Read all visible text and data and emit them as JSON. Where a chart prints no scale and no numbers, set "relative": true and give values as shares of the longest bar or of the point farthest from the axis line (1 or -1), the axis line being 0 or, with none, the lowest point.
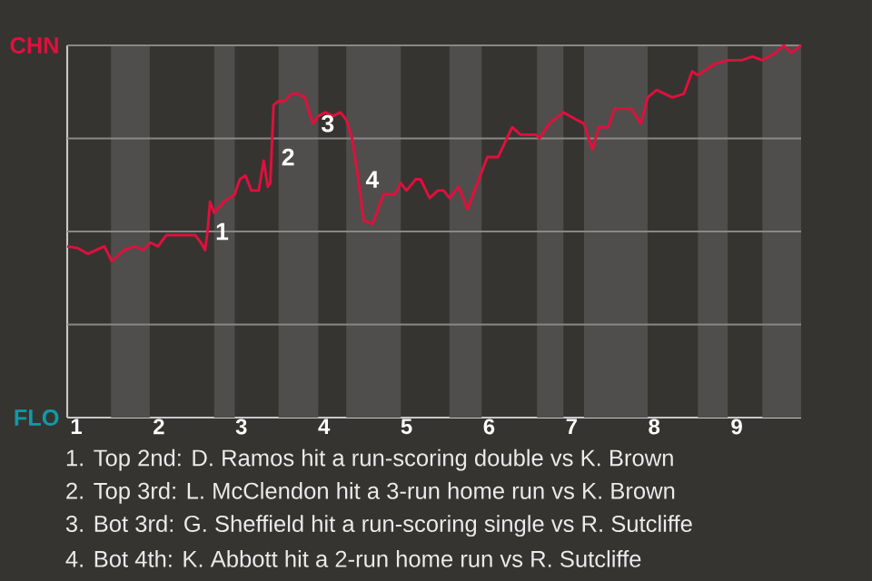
{
  "chart_data": {
    "type": "line",
    "relative": true,
    "x": [
      0.89,
      1.02,
      1.14,
      1.34,
      1.43,
      1.58,
      1.71,
      1.81,
      1.9,
      1.99,
      2.09,
      2.44,
      2.51,
      2.56,
      2.59,
      2.62,
      2.67,
      2.79,
      2.92,
      2.98,
      3.05,
      3.12,
      3.21,
      3.27,
      3.32,
      3.35,
      3.39,
      3.45,
      3.52,
      3.61,
      3.68,
      3.77,
      3.82,
      3.87,
      3.93,
      4.02,
      4.11,
      4.2,
      4.27,
      4.34,
      4.41,
      4.48,
      4.59,
      4.72,
      4.86,
      4.93,
      5.0,
      5.11,
      5.17,
      5.28,
      5.38,
      5.45,
      5.52,
      5.63,
      5.74,
      5.91,
      5.98,
      6.11,
      6.28,
      6.38,
      6.57,
      6.61,
      6.73,
      6.9,
      7.06,
      7.15,
      7.25,
      7.33,
      7.44,
      7.52,
      7.72,
      7.84,
      7.92,
      8.03,
      8.22,
      8.36,
      8.46,
      8.53,
      8.73,
      8.89,
      9.06,
      9.19,
      9.31,
      9.47,
      9.57,
      9.66,
      9.78
    ],
    "series": [
      {
        "color": "#e0103c",
        "values": [
          0.46,
          0.455,
          0.44,
          0.46,
          0.42,
          0.45,
          0.46,
          0.45,
          0.47,
          0.46,
          0.49,
          0.49,
          0.47,
          0.45,
          0.5,
          0.58,
          0.55,
          0.58,
          0.6,
          0.64,
          0.65,
          0.61,
          0.61,
          0.69,
          0.62,
          0.63,
          0.84,
          0.85,
          0.85,
          0.87,
          0.87,
          0.86,
          0.82,
          0.79,
          0.81,
          0.82,
          0.81,
          0.82,
          0.8,
          0.75,
          0.65,
          0.53,
          0.52,
          0.6,
          0.6,
          0.63,
          0.61,
          0.64,
          0.64,
          0.59,
          0.61,
          0.61,
          0.59,
          0.62,
          0.56,
          0.66,
          0.7,
          0.7,
          0.78,
          0.76,
          0.76,
          0.75,
          0.79,
          0.82,
          0.8,
          0.79,
          0.72,
          0.78,
          0.78,
          0.83,
          0.83,
          0.79,
          0.86,
          0.88,
          0.86,
          0.87,
          0.93,
          0.92,
          0.95,
          0.96,
          0.96,
          0.97,
          0.96,
          0.98,
          1.0,
          0.98,
          1.0
        ]
      }
    ],
    "xlim": [
      0.89,
      9.78
    ],
    "xticks": [
      1,
      2,
      3,
      4,
      5,
      6,
      7,
      8,
      9
    ],
    "ref_lines": [
      {
        "axis": "y",
        "value": 0.25,
        "color": "#8a8886"
      },
      {
        "axis": "y",
        "value": 0.5,
        "color": "#8a8886"
      },
      {
        "axis": "y",
        "value": 0.75,
        "color": "#8a8886"
      },
      {
        "axis": "y",
        "value": 1,
        "color": "#8a8886"
      }
    ],
    "bands": [
      {
        "axis": "x",
        "from": 1.42,
        "to": 1.89,
        "color": "#4f4e4c"
      },
      {
        "axis": "x",
        "from": 2.67,
        "to": 2.92,
        "color": "#4f4e4c"
      },
      {
        "axis": "x",
        "from": 3.45,
        "to": 3.93,
        "color": "#4f4e4c"
      },
      {
        "axis": "x",
        "from": 4.27,
        "to": 4.93,
        "color": "#4f4e4c"
      },
      {
        "axis": "x",
        "from": 5.52,
        "to": 5.91,
        "color": "#4f4e4c"
      },
      {
        "axis": "x",
        "from": 6.58,
        "to": 6.9,
        "color": "#4f4e4c"
      },
      {
        "axis": "x",
        "from": 7.15,
        "to": 7.92,
        "color": "#4f4e4c"
      },
      {
        "axis": "x",
        "from": 8.53,
        "to": 8.89,
        "color": "#4f4e4c"
      },
      {
        "axis": "x",
        "from": 9.31,
        "to": 9.78,
        "color": "#4f4e4c"
      }
    ],
    "annotations": [
      "CHN",
      "FLO",
      {
        "text": "1",
        "x": 2.59,
        "y": 0.5
      },
      {
        "text": "2",
        "x": 3.39,
        "y": 0.7
      },
      {
        "text": "3",
        "x": 3.87,
        "y": 0.79
      },
      {
        "text": "4",
        "x": 4.41,
        "y": 0.64
      },
      "1. Top 2nd: D. Ramos hit a run-scoring double vs K. Brown",
      "2. Top 3rd: L. McClendon hit a 3-run home run vs K. Brown",
      "3. Bot 3rd: G. Sheffield hit a run-scoring single vs R. Sutcliffe",
      "4. Bot 4th: K. Abbott hit a 2-run home run vs R. Sutcliffe"
    ]
  }
}
